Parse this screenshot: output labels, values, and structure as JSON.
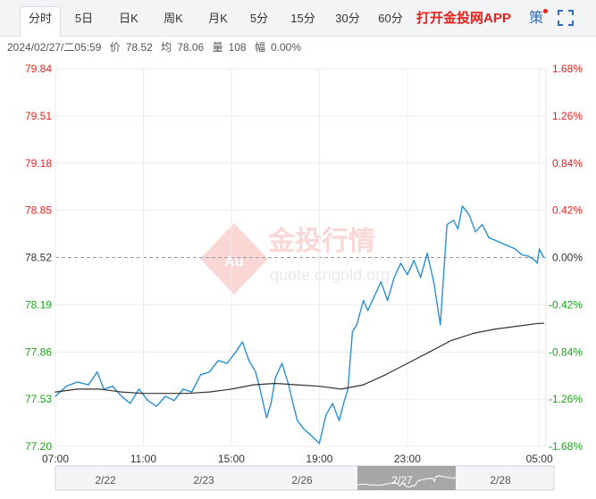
{
  "tabs": [
    {
      "label": "分时",
      "active": true
    },
    {
      "label": "5日"
    },
    {
      "label": "日K"
    },
    {
      "label": "周K"
    },
    {
      "label": "月K"
    },
    {
      "label": "5分"
    },
    {
      "label": "15分"
    },
    {
      "label": "30分"
    },
    {
      "label": "60分"
    }
  ],
  "app_link": "打开金投网APP",
  "strategy_label": "策",
  "info": {
    "datetime": "2024/02/27/二05:59",
    "price_label": "价",
    "price": "78.52",
    "avg_label": "均",
    "avg": "78.06",
    "volume_label": "量",
    "volume": "108",
    "change_label": "幅",
    "change": "0.00%"
  },
  "watermark": {
    "brand": "金投行情",
    "url": "quote.cngold.org",
    "logo": "Au"
  },
  "colors": {
    "price_line": "#2a8fd4",
    "avg_line": "#333333",
    "up": "#e8211c",
    "down": "#1aa31a",
    "neutral": "#333333"
  },
  "chart_data": {
    "type": "line",
    "ylim": [
      77.2,
      79.84
    ],
    "prev_close": 78.52,
    "y_ticks": [
      "79.84",
      "79.51",
      "79.18",
      "78.85",
      "78.52",
      "78.19",
      "77.86",
      "77.53",
      "77.20"
    ],
    "pct_ticks": [
      "1.68%",
      "1.26%",
      "0.84%",
      "0.42%",
      "0.00%",
      "-0.42%",
      "-0.84%",
      "-1.26%",
      "-1.68%"
    ],
    "x_ticks": [
      "07:00",
      "11:00",
      "15:00",
      "19:00",
      "23:00",
      "05:00"
    ],
    "x_hours": [
      0,
      4,
      8,
      12,
      16,
      22
    ],
    "x_range_hours": [
      0,
      22.3
    ],
    "series": [
      {
        "name": "价",
        "x": [
          0,
          0.5,
          1,
          1.5,
          1.9,
          2.2,
          2.6,
          3.0,
          3.4,
          3.8,
          4.2,
          4.6,
          5.0,
          5.4,
          5.8,
          6.2,
          6.6,
          7.0,
          7.4,
          7.8,
          8.2,
          8.5,
          8.8,
          9.1,
          9.3,
          9.6,
          9.8,
          10.0,
          10.3,
          10.6,
          10.8,
          11.0,
          11.3,
          11.6,
          11.8,
          12.0,
          12.3,
          12.6,
          12.9,
          13.1,
          13.3,
          13.5,
          13.7,
          14.0,
          14.2,
          14.5,
          14.8,
          15.1,
          15.4,
          15.7,
          16.0,
          16.3,
          16.6,
          16.9,
          17.2,
          17.5,
          17.8,
          18.1,
          18.3,
          18.5,
          18.8,
          19.1,
          19.4,
          19.7,
          20.0,
          20.3,
          20.6,
          20.9,
          21.2,
          21.5,
          21.8,
          21.9,
          22.0,
          22.2
        ],
        "values": [
          77.55,
          77.62,
          77.65,
          77.63,
          77.72,
          77.6,
          77.62,
          77.55,
          77.5,
          77.6,
          77.52,
          77.48,
          77.55,
          77.52,
          77.6,
          77.58,
          77.7,
          77.72,
          77.8,
          77.78,
          77.86,
          77.93,
          77.8,
          77.72,
          77.6,
          77.4,
          77.5,
          77.68,
          77.78,
          77.63,
          77.5,
          77.38,
          77.32,
          77.28,
          77.25,
          77.22,
          77.42,
          77.5,
          77.38,
          77.5,
          77.6,
          78.0,
          78.05,
          78.22,
          78.15,
          78.25,
          78.35,
          78.22,
          78.38,
          78.48,
          78.4,
          78.5,
          78.38,
          78.55,
          78.35,
          78.05,
          78.75,
          78.78,
          78.72,
          78.88,
          78.82,
          78.7,
          78.75,
          78.66,
          78.64,
          78.62,
          78.6,
          78.58,
          78.54,
          78.53,
          78.5,
          78.48,
          78.58,
          78.52
        ]
      },
      {
        "name": "均",
        "x": [
          0,
          1,
          2,
          3,
          4,
          5,
          6,
          7,
          8,
          9,
          10,
          11,
          12,
          13,
          14,
          15,
          16,
          17,
          18,
          19,
          20,
          21,
          22,
          22.2
        ],
        "values": [
          77.58,
          77.6,
          77.6,
          77.58,
          77.57,
          77.57,
          77.57,
          77.58,
          77.6,
          77.63,
          77.64,
          77.63,
          77.62,
          77.6,
          77.63,
          77.7,
          77.78,
          77.86,
          77.94,
          77.99,
          78.02,
          78.04,
          78.06,
          78.06
        ]
      }
    ]
  }
}
